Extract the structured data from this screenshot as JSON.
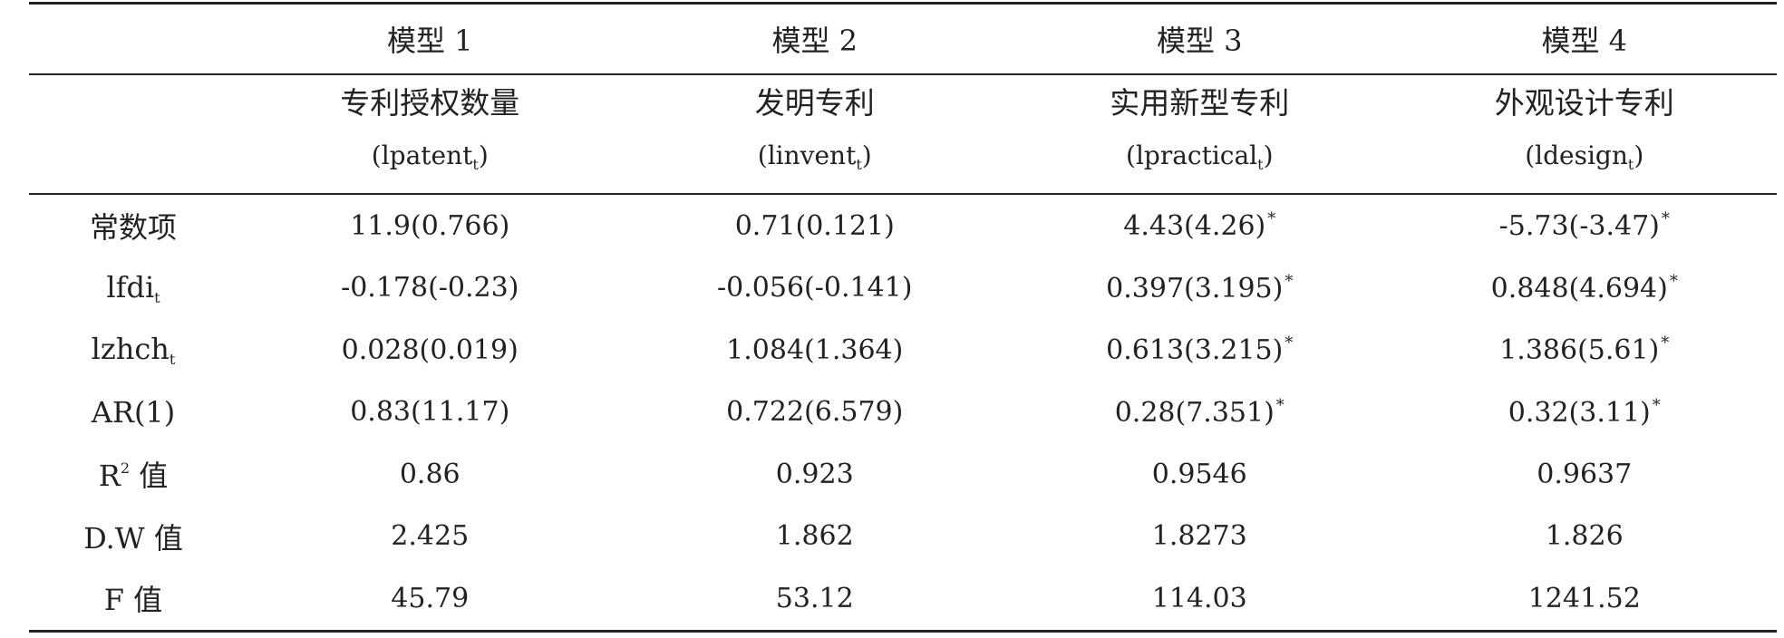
{
  "header": {
    "models": [
      "模型 1",
      "模型 2",
      "模型 3",
      "模型 4"
    ],
    "variables": [
      {
        "name": "专利授权数量",
        "code": "lpatent",
        "sub": "t"
      },
      {
        "name": "发明专利",
        "code": "linvent",
        "sub": "t"
      },
      {
        "name": "实用新型专利",
        "code": "lpractical",
        "sub": "t"
      },
      {
        "name": "外观设计专利",
        "code": "ldesign",
        "sub": "t"
      }
    ],
    "paren_open": "(",
    "paren_close": ")"
  },
  "rows": [
    {
      "label": "常数项",
      "label_sub": "",
      "label_sup": "",
      "label_tail": "",
      "cells": [
        {
          "value": "11.9(0.766)",
          "star": ""
        },
        {
          "value": "0.71(0.121)",
          "star": ""
        },
        {
          "value": "4.43(4.26)",
          "star": "*"
        },
        {
          "value": "-5.73(-3.47)",
          "star": "*"
        }
      ]
    },
    {
      "label": "lfdi",
      "label_sub": "t",
      "label_sup": "",
      "label_tail": "",
      "cells": [
        {
          "value": "-0.178(-0.23)",
          "star": ""
        },
        {
          "value": "-0.056(-0.141)",
          "star": ""
        },
        {
          "value": "0.397(3.195)",
          "star": "*"
        },
        {
          "value": "0.848(4.694)",
          "star": "*"
        }
      ]
    },
    {
      "label": "lzhch",
      "label_sub": "t",
      "label_sup": "",
      "label_tail": "",
      "cells": [
        {
          "value": "0.028(0.019)",
          "star": ""
        },
        {
          "value": "1.084(1.364)",
          "star": ""
        },
        {
          "value": "0.613(3.215)",
          "star": "*"
        },
        {
          "value": "1.386(5.61)",
          "star": "*"
        }
      ]
    },
    {
      "label": "AR(1)",
      "label_sub": "",
      "label_sup": "",
      "label_tail": "",
      "cells": [
        {
          "value": "0.83(11.17)",
          "star": ""
        },
        {
          "value": "0.722(6.579)",
          "star": ""
        },
        {
          "value": "0.28(7.351)",
          "star": "*"
        },
        {
          "value": "0.32(3.11)",
          "star": "*"
        }
      ]
    },
    {
      "label": "R",
      "label_sub": "",
      "label_sup": "2",
      "label_tail": " 值",
      "cells": [
        {
          "value": "0.86",
          "star": ""
        },
        {
          "value": "0.923",
          "star": ""
        },
        {
          "value": "0.9546",
          "star": ""
        },
        {
          "value": "0.9637",
          "star": ""
        }
      ]
    },
    {
      "label": "D.W 值",
      "label_sub": "",
      "label_sup": "",
      "label_tail": "",
      "cells": [
        {
          "value": "2.425",
          "star": ""
        },
        {
          "value": "1.862",
          "star": ""
        },
        {
          "value": "1.8273",
          "star": ""
        },
        {
          "value": "1.826",
          "star": ""
        }
      ]
    },
    {
      "label": "F 值",
      "label_sub": "",
      "label_sup": "",
      "label_tail": "",
      "cells": [
        {
          "value": "45.79",
          "star": ""
        },
        {
          "value": "53.12",
          "star": ""
        },
        {
          "value": "114.03",
          "star": ""
        },
        {
          "value": "1241.52",
          "star": ""
        }
      ]
    }
  ]
}
